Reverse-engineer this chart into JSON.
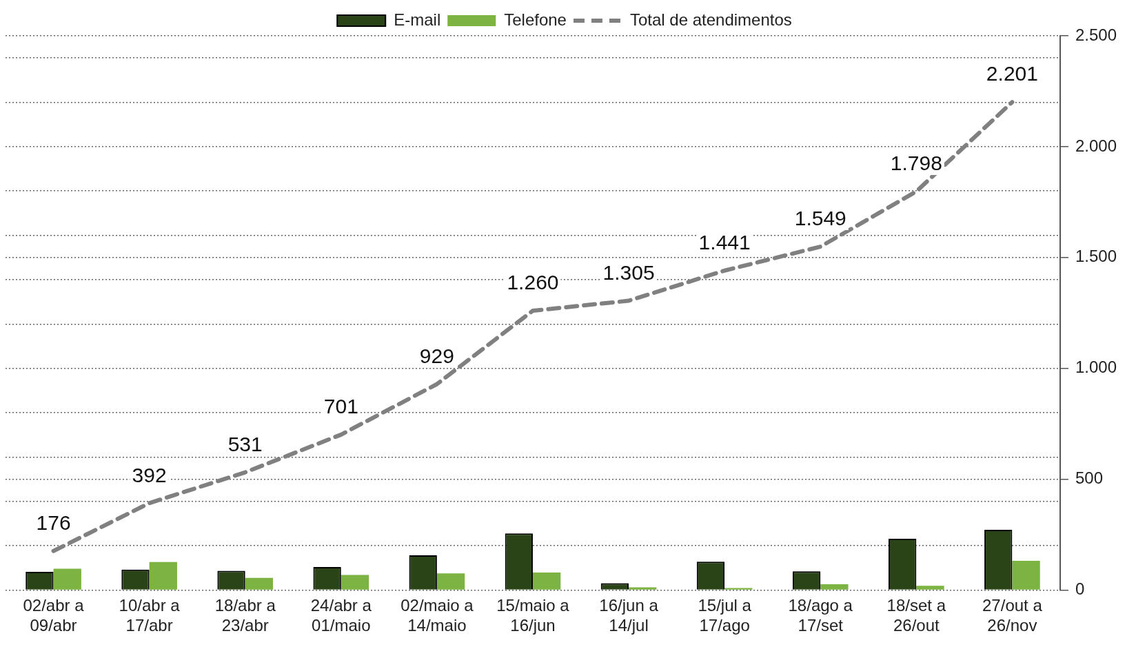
{
  "chart_data": {
    "type": "bar",
    "categories": [
      "02/abr a 09/abr",
      "10/abr a 17/abr",
      "18/abr a 23/abr",
      "24/abr a 01/maio",
      "02/maio a 14/maio",
      "15/maio a 16/jun",
      "16/jun a 14/jul",
      "15/jul a 17/ago",
      "18/ago a 17/set",
      "18/set a 26/out",
      "27/out a 26/nov"
    ],
    "series": [
      {
        "name": "E-mail",
        "color": "#2a4417",
        "values": [
          82,
          92,
          87,
          104,
          157,
          255,
          31,
          128,
          84,
          231,
          272
        ]
      },
      {
        "name": "Telefone",
        "color": "#7cb342",
        "values": [
          96,
          126,
          55,
          68,
          75,
          79,
          12,
          9,
          26,
          19,
          132
        ]
      },
      {
        "name": "Total de atendimentos",
        "type": "line",
        "color": "#808080",
        "line_style": "dashed",
        "marker": "none",
        "values": [
          176,
          392,
          531,
          701,
          929,
          1260,
          1305,
          1441,
          1549,
          1798,
          2201
        ],
        "value_labels": [
          "176",
          "392",
          "531",
          "701",
          "929",
          "1.260",
          "1.305",
          "1.441",
          "1.549",
          "1.798",
          "2.201"
        ]
      }
    ],
    "ylim": [
      0,
      2500
    ],
    "yticks": [
      {
        "value": 0,
        "label": "0"
      },
      {
        "value": 200,
        "label": null
      },
      {
        "value": 400,
        "label": null
      },
      {
        "value": 500,
        "label": "500"
      },
      {
        "value": 600,
        "label": null
      },
      {
        "value": 800,
        "label": null
      },
      {
        "value": 1000,
        "label": "1.000"
      },
      {
        "value": 1200,
        "label": null
      },
      {
        "value": 1400,
        "label": null
      },
      {
        "value": 1500,
        "label": "1.500"
      },
      {
        "value": 1600,
        "label": null
      },
      {
        "value": 1800,
        "label": null
      },
      {
        "value": 2000,
        "label": "2.000"
      },
      {
        "value": 2200,
        "label": null
      },
      {
        "value": 2400,
        "label": null
      },
      {
        "value": 2500,
        "label": "2.500"
      }
    ],
    "grid": "y",
    "legend": "top"
  }
}
